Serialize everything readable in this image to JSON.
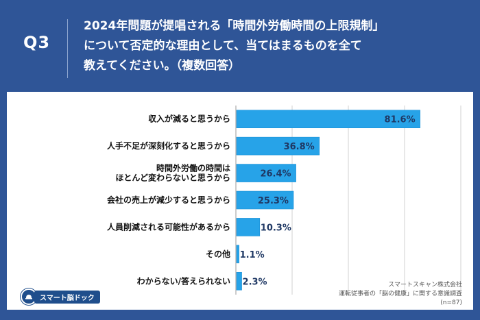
{
  "question": {
    "number": "Q3",
    "lines": [
      "2024年問題が提唱される「時間外労働時間の上限規制」",
      "について否定的な理由として、当てはまるものを全て",
      "教えてください。（複数回答）"
    ]
  },
  "logo": {
    "text": "スマート脳ドック"
  },
  "source": {
    "company": "スマートスキャン株式会社",
    "survey": "運転従事者の「脳の健康」に関する意識調査",
    "sample": "(n=87)"
  },
  "colors": {
    "header_bg": "#2f5597",
    "bar": "#27a3e8",
    "bar_edge": "#1b8fd6",
    "grid": "#d0d0d0"
  },
  "chart_data": {
    "type": "bar",
    "orientation": "horizontal",
    "categories": [
      "収入が減ると思うから",
      "人手不足が深刻化すると思うから",
      "時間外労働の時間は\nほとんど変わらないと思うから",
      "会社の売上が減少すると思うから",
      "人員削減される可能性があるから",
      "その他",
      "わからない/答えられない"
    ],
    "values": [
      81.6,
      36.8,
      26.4,
      25.3,
      10.3,
      1.1,
      2.3
    ],
    "value_labels": [
      "81.6%",
      "36.8%",
      "26.4%",
      "25.3%",
      "10.3%",
      "1.1%",
      "2.3%"
    ],
    "xlim": [
      0,
      100
    ],
    "grid": true,
    "legend": "none"
  }
}
